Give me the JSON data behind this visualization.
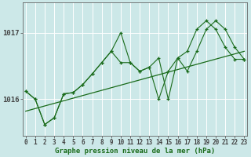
{
  "title": "Graphe pression niveau de la mer (hPa)",
  "bg_color": "#cce8e8",
  "plot_bg_color": "#cce8e8",
  "grid_color": "#ffffff",
  "line_color": "#1a6b1a",
  "ylim": [
    1015.45,
    1017.45
  ],
  "yticks": [
    1016,
    1017
  ],
  "ylabel_left": [
    "1016",
    "1017"
  ],
  "xlim": [
    -0.3,
    23.3
  ],
  "xticks": [
    0,
    1,
    2,
    3,
    4,
    5,
    6,
    7,
    8,
    9,
    10,
    11,
    12,
    13,
    14,
    15,
    16,
    17,
    18,
    19,
    20,
    21,
    22,
    23
  ],
  "series1_y": [
    1016.12,
    1016.0,
    1015.62,
    1015.72,
    1016.08,
    1016.1,
    1016.22,
    1016.38,
    1016.55,
    1016.72,
    1017.0,
    1016.55,
    1016.42,
    1016.48,
    1016.0,
    1016.42,
    1016.62,
    1016.72,
    1017.05,
    1017.18,
    1017.05,
    1016.78,
    1016.6,
    1016.6
  ],
  "series2_y": [
    1016.12,
    1016.0,
    1015.62,
    1015.72,
    1016.08,
    1016.1,
    1016.22,
    1016.38,
    1016.55,
    1016.72,
    1016.55,
    1016.55,
    1016.42,
    1016.48,
    1016.62,
    1016.0,
    1016.62,
    1016.42,
    1016.72,
    1017.05,
    1017.18,
    1017.05,
    1016.78,
    1016.6
  ],
  "trend_x": [
    0,
    23
  ],
  "trend_y": [
    1015.82,
    1016.72
  ],
  "title_fontsize": 6.5,
  "tick_fontsize": 5.5,
  "ytick_fontsize": 6.5
}
